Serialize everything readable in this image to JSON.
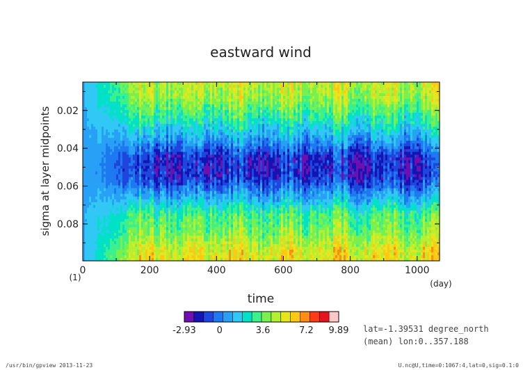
{
  "chart_data": {
    "type": "heatmap",
    "title": "eastward wind",
    "xlabel": "time",
    "x_unit": "(day)",
    "ylabel": "sigma at layer midpoints",
    "y_unit": "(1)",
    "xlim": [
      0,
      1067
    ],
    "ylim": [
      0.005,
      0.0995
    ],
    "y_inverted": true,
    "x_ticks": [
      0,
      200,
      400,
      600,
      800,
      1000
    ],
    "x_tick_labels": [
      "0",
      "200",
      "400",
      "600",
      "800",
      "1000"
    ],
    "y_ticks": [
      0.02,
      0.04,
      0.06,
      0.08
    ],
    "y_tick_labels": [
      "0.02",
      "0.04",
      "0.06",
      "0.08"
    ],
    "colorbar": {
      "min": -2.93,
      "max": 9.89,
      "tick_labels": [
        "-2.93",
        "0",
        "3.6",
        "7.2",
        "9.89"
      ],
      "tick_values": [
        -2.93,
        0,
        3.6,
        7.2,
        9.89
      ],
      "colors": [
        "#6f0fb0",
        "#1414b4",
        "#1e46dc",
        "#1e78f0",
        "#28a0f5",
        "#32c8f5",
        "#00e1c8",
        "#3cf08c",
        "#78f050",
        "#b4f032",
        "#e6e61e",
        "#ffc814",
        "#ff8c14",
        "#ff3c14",
        "#e6141e",
        "#ffc8c8"
      ]
    },
    "profile": [
      {
        "sigma": 0.005,
        "value": 5.0
      },
      {
        "sigma": 0.015,
        "value": 4.2
      },
      {
        "sigma": 0.025,
        "value": 2.6
      },
      {
        "sigma": 0.035,
        "value": 0.8
      },
      {
        "sigma": 0.045,
        "value": -1.4
      },
      {
        "sigma": 0.055,
        "value": -1.4
      },
      {
        "sigma": 0.065,
        "value": 0.8
      },
      {
        "sigma": 0.075,
        "value": 3.2
      },
      {
        "sigma": 0.085,
        "value": 4.0
      },
      {
        "sigma": 0.095,
        "value": 5.5
      }
    ],
    "spinup_end_day": 180,
    "spinup_value": 0.9
  },
  "annotations": {
    "lat": "lat=-1.39531 degree_north",
    "mean": "(mean) lon:0..357.188"
  },
  "footer": {
    "left": "/usr/bin/gpview  2013-11-23",
    "right": "U.nc@U,time=0:1067:4,lat=0,sig=0.1:0"
  }
}
